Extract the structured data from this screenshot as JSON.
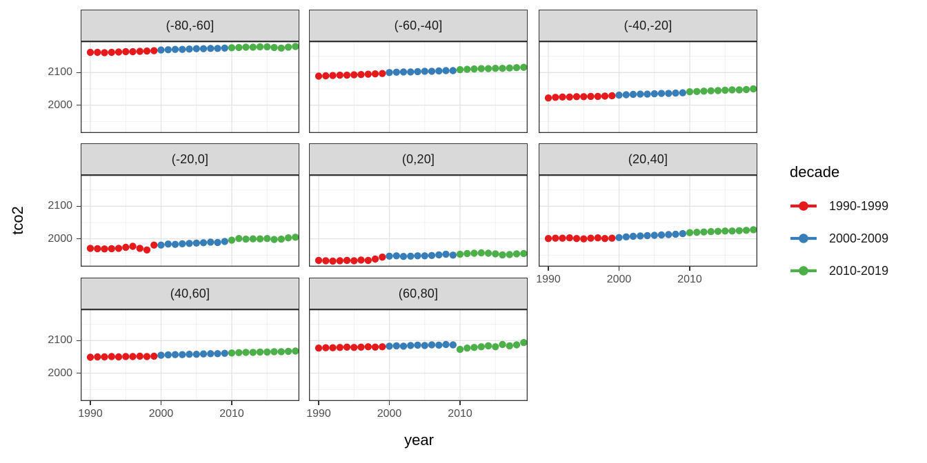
{
  "chart_data": {
    "type": "scatter",
    "title": "",
    "xlabel": "year",
    "ylabel": "tco2",
    "legend_position": "right",
    "grid": true,
    "x_domain": [
      1988.63,
      2019.56
    ],
    "y_domain": [
      1914.8,
      2195.7
    ],
    "x_major_ticks": [
      1990,
      2000,
      2010
    ],
    "x_minor_ticks": [
      1995,
      2005,
      2015
    ],
    "y_major_ticks": [
      2100,
      2000
    ],
    "y_minor_ticks": [
      2150,
      2050,
      1950
    ],
    "x_tick_labels": [
      "1990",
      "2000",
      "2010"
    ],
    "y_tick_labels": [
      "2100",
      "2000"
    ],
    "x": [
      1990,
      1991,
      1992,
      1993,
      1994,
      1995,
      1996,
      1997,
      1998,
      1999,
      2000,
      2001,
      2002,
      2003,
      2004,
      2005,
      2006,
      2007,
      2008,
      2009,
      2010,
      2011,
      2012,
      2013,
      2014,
      2015,
      2016,
      2017,
      2018,
      2019
    ],
    "decades": [
      {
        "label": "1990-1999",
        "start_year": 1990,
        "end_year": 1999,
        "color": "#E41A1C"
      },
      {
        "label": "2000-2009",
        "start_year": 2000,
        "end_year": 2009,
        "color": "#377EB8"
      },
      {
        "label": "2010-2019",
        "start_year": 2010,
        "end_year": 2019,
        "color": "#4DAF4A"
      }
    ],
    "facets": [
      {
        "label": "(-80,-60]",
        "tco2": [
          2162,
          2162,
          2161,
          2162,
          2163,
          2164,
          2164,
          2165,
          2166,
          2167,
          2169,
          2170,
          2171,
          2171,
          2172,
          2173,
          2173,
          2174,
          2174,
          2175,
          2176,
          2177,
          2178,
          2178,
          2179,
          2179,
          2177,
          2175,
          2178,
          2180
        ]
      },
      {
        "label": "(-60,-40]",
        "tco2": [
          2089,
          2090,
          2091,
          2092,
          2092,
          2093,
          2094,
          2095,
          2096,
          2097,
          2100,
          2101,
          2102,
          2102,
          2103,
          2104,
          2104,
          2105,
          2106,
          2106,
          2109,
          2110,
          2111,
          2112,
          2112,
          2113,
          2113,
          2114,
          2115,
          2116
        ]
      },
      {
        "label": "(-40,-20]",
        "tco2": [
          2022,
          2024,
          2025,
          2025,
          2026,
          2026,
          2027,
          2027,
          2028,
          2029,
          2031,
          2032,
          2033,
          2034,
          2034,
          2035,
          2036,
          2036,
          2037,
          2038,
          2041,
          2042,
          2043,
          2044,
          2045,
          2046,
          2047,
          2047,
          2048,
          2050
        ]
      },
      {
        "label": "(-20,0]",
        "tco2": [
          1971,
          1970,
          1969,
          1970,
          1971,
          1974,
          1977,
          1971,
          1966,
          1981,
          1981,
          1984,
          1983,
          1985,
          1986,
          1987,
          1988,
          1990,
          1989,
          1992,
          1996,
          2001,
          1999,
          2000,
          2000,
          2001,
          1998,
          1999,
          2003,
          2005
        ]
      },
      {
        "label": "(0,20]",
        "tco2": [
          1934,
          1933,
          1932,
          1933,
          1934,
          1933,
          1935,
          1934,
          1938,
          1944,
          1947,
          1948,
          1946,
          1947,
          1948,
          1948,
          1949,
          1951,
          1953,
          1950,
          1953,
          1955,
          1956,
          1957,
          1956,
          1954,
          1951,
          1952,
          1954,
          1955
        ]
      },
      {
        "label": "(20,40]",
        "tco2": [
          2001,
          2002,
          2002,
          2003,
          2001,
          2000,
          2002,
          2003,
          2001,
          2002,
          2004,
          2006,
          2008,
          2009,
          2010,
          2011,
          2012,
          2013,
          2014,
          2016,
          2019,
          2020,
          2021,
          2022,
          2023,
          2024,
          2024,
          2025,
          2026,
          2028
        ]
      },
      {
        "label": "(40,60]",
        "tco2": [
          2049,
          2050,
          2050,
          2051,
          2050,
          2051,
          2051,
          2052,
          2051,
          2052,
          2055,
          2056,
          2057,
          2057,
          2058,
          2058,
          2059,
          2060,
          2060,
          2061,
          2062,
          2063,
          2064,
          2064,
          2065,
          2065,
          2066,
          2066,
          2067,
          2068
        ]
      },
      {
        "label": "(60,80]",
        "tco2": [
          2077,
          2078,
          2078,
          2079,
          2080,
          2079,
          2080,
          2081,
          2080,
          2081,
          2083,
          2084,
          2083,
          2085,
          2086,
          2085,
          2087,
          2086,
          2088,
          2087,
          2073,
          2077,
          2079,
          2081,
          2084,
          2081,
          2088,
          2084,
          2087,
          2094
        ]
      }
    ],
    "style": {
      "strip_fill": "#d9d9d9",
      "panel_border": "#333333",
      "grid_major": "#e3e3e3",
      "grid_minor": "#efefef",
      "tick_text": "#4d4d4d",
      "point_radius": 5.2
    }
  },
  "legend": {
    "title": "decade",
    "entries": [
      {
        "label": "1990-1999",
        "color": "#E41A1C"
      },
      {
        "label": "2000-2009",
        "color": "#377EB8"
      },
      {
        "label": "2010-2019",
        "color": "#4DAF4A"
      }
    ]
  },
  "axis_titles": {
    "x": "year",
    "y": "tco2"
  }
}
